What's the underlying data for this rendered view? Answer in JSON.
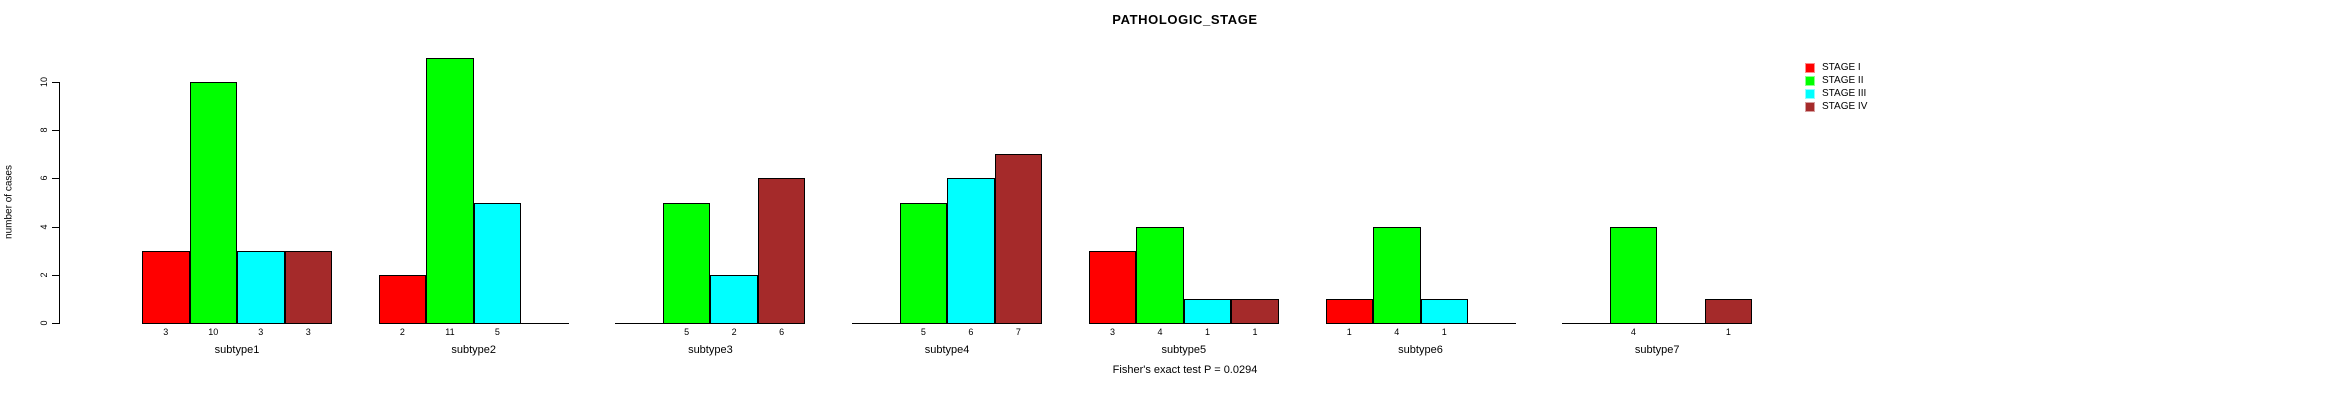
{
  "title": "PATHOLOGIC_STAGE",
  "footer": "Fisher's exact test P = 0.0294",
  "chart_data": {
    "type": "bar",
    "title": "PATHOLOGIC_STAGE",
    "xlabel": "",
    "ylabel": "number of cases",
    "ylim": [
      0,
      11
    ],
    "yticks": [
      0,
      2,
      4,
      6,
      8,
      10
    ],
    "grid": false,
    "bar_borders": "black",
    "bar_count_labels_shown": true,
    "legend_position": "top-right",
    "annotation": "Fisher's exact test P = 0.0294",
    "categories": [
      "subtype1",
      "subtype2",
      "subtype3",
      "subtype4",
      "subtype5",
      "subtype6",
      "subtype7"
    ],
    "series": [
      {
        "name": "STAGE I",
        "color": "#FF0000",
        "values": [
          3,
          2,
          0,
          0,
          3,
          1,
          0
        ]
      },
      {
        "name": "STAGE II",
        "color": "#00FF00",
        "values": [
          10,
          11,
          5,
          5,
          4,
          4,
          4
        ]
      },
      {
        "name": "STAGE III",
        "color": "#00FFFF",
        "values": [
          3,
          5,
          2,
          6,
          1,
          1,
          0
        ]
      },
      {
        "name": "STAGE IV",
        "color": "#A52A2A",
        "values": [
          3,
          0,
          6,
          7,
          1,
          0,
          1
        ]
      }
    ]
  }
}
